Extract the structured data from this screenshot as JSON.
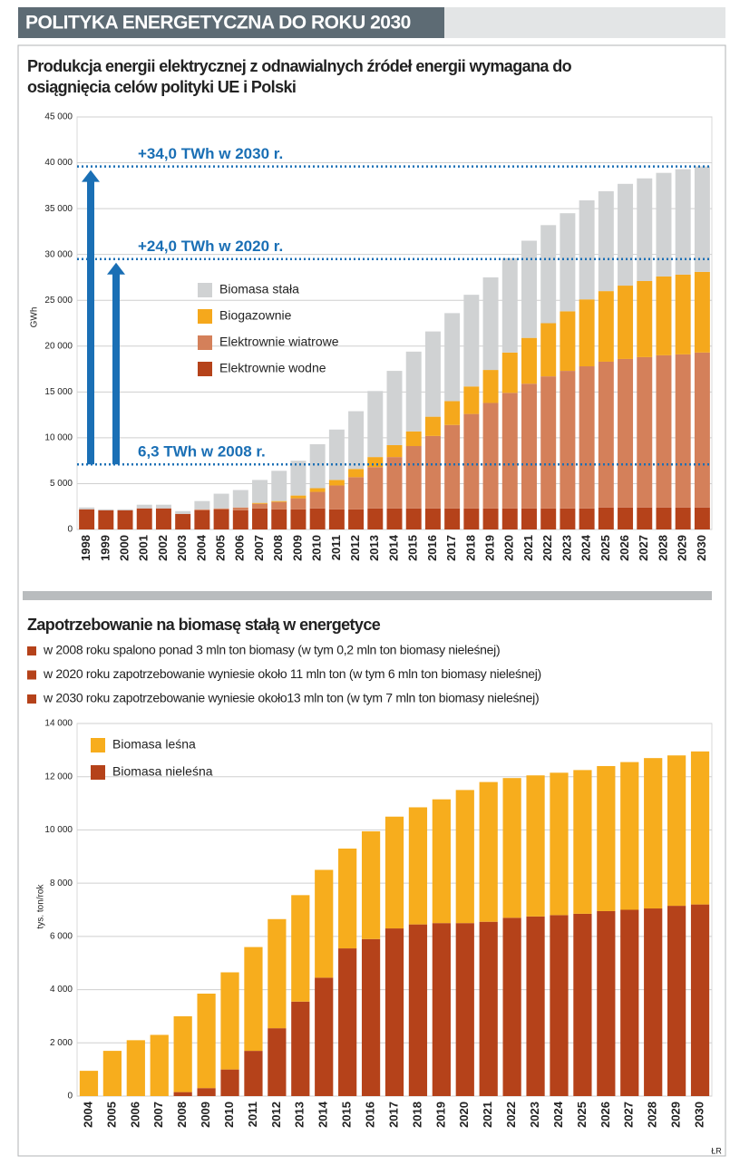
{
  "header": {
    "title": "POLITYKA ENERGETYCZNA DO ROKU 2030"
  },
  "credit": "ŁR",
  "chart_data": [
    {
      "type": "stacked-bar",
      "title": "Produkcja energii elektrycznej z odnawialnych źródeł energii wymagana do osiągnięcia celów polityki UE i Polski",
      "y_label": "GWh",
      "categories": [
        "1998",
        "1999",
        "2000",
        "2001",
        "2002",
        "2003",
        "2004",
        "2005",
        "2006",
        "2007",
        "2008",
        "2009",
        "2010",
        "2011",
        "2012",
        "2013",
        "2014",
        "2015",
        "2016",
        "2017",
        "2018",
        "2019",
        "2020",
        "2021",
        "2022",
        "2023",
        "2024",
        "2025",
        "2026",
        "2027",
        "2028",
        "2029",
        "2030"
      ],
      "series": [
        {
          "name": "Elektrownie wodne",
          "color": "#b5421a",
          "values": [
            2200,
            2100,
            2100,
            2300,
            2300,
            1700,
            2100,
            2200,
            2100,
            2300,
            2200,
            2200,
            2300,
            2200,
            2200,
            2300,
            2300,
            2300,
            2300,
            2300,
            2300,
            2300,
            2300,
            2300,
            2300,
            2300,
            2300,
            2400,
            2400,
            2400,
            2400,
            2400,
            2400
          ]
        },
        {
          "name": "Elektrownie wiatrowe",
          "color": "#d4805a",
          "values": [
            0,
            0,
            0,
            0,
            0,
            0,
            100,
            100,
            300,
            500,
            800,
            1200,
            1800,
            2600,
            3500,
            4500,
            5600,
            6800,
            7900,
            9100,
            10300,
            11500,
            12600,
            13600,
            14400,
            15000,
            15500,
            15900,
            16200,
            16400,
            16600,
            16700,
            16900
          ]
        },
        {
          "name": "Biogazownie",
          "color": "#f5a81c",
          "values": [
            0,
            0,
            0,
            0,
            0,
            0,
            0,
            0,
            0,
            100,
            100,
            300,
            400,
            600,
            900,
            1100,
            1300,
            1600,
            2100,
            2600,
            3000,
            3600,
            4400,
            5000,
            5800,
            6500,
            7300,
            7700,
            8000,
            8300,
            8600,
            8700,
            8800
          ]
        },
        {
          "name": "Biomasa stała",
          "color": "#d0d2d3",
          "values": [
            200,
            100,
            100,
            400,
            400,
            300,
            900,
            1600,
            1900,
            2500,
            3300,
            3800,
            4800,
            5500,
            6300,
            7200,
            8100,
            8700,
            9300,
            9600,
            10000,
            10100,
            10300,
            10600,
            10700,
            10700,
            10800,
            10900,
            11100,
            11200,
            11300,
            11500,
            11500
          ]
        }
      ],
      "ylim": [
        0,
        45000
      ],
      "yticks": [
        0,
        {
          "value": 5000,
          "label": "5 000"
        },
        {
          "value": 10000,
          "label": "10 000"
        },
        {
          "value": 15000,
          "label": "15 000"
        },
        {
          "value": 20000,
          "label": "20 000"
        },
        {
          "value": 25000,
          "label": "25 000"
        },
        {
          "value": 30000,
          "label": "30 000"
        },
        {
          "value": 35000,
          "label": "35 000"
        },
        {
          "value": 40000,
          "label": "40 000"
        },
        {
          "value": 45000,
          "label": "45 000"
        }
      ],
      "grid": true,
      "annotations": [
        {
          "text": "+34,0 TWh w 2030 r.",
          "value": 39600
        },
        {
          "text": "+24,0 TWh w 2020 r.",
          "value": 29500
        },
        {
          "text": "6,3 TWh w 2008 r.",
          "value": 7100
        }
      ]
    },
    {
      "type": "stacked-bar",
      "title": "Zapotrzebowanie na biomasę stałą w energetyce",
      "notes": [
        "w 2008 roku spalono ponad 3 mln ton biomasy (w tym 0,2 mln ton biomasy nieleśnej)",
        "w 2020 roku zapotrzebowanie wyniesie około 11 mln ton (w tym 6 mln ton biomasy nieleśnej)",
        "w 2030 roku zapotrzebowanie wyniesie około13 mln ton (w tym 7 mln ton biomasy nieleśnej)"
      ],
      "y_label": "tys. ton/rok",
      "categories": [
        "2004",
        "2005",
        "2006",
        "2007",
        "2008",
        "2009",
        "2010",
        "2011",
        "2012",
        "2013",
        "2014",
        "2015",
        "2016",
        "2017",
        "2018",
        "2019",
        "2020",
        "2021",
        "2022",
        "2023",
        "2024",
        "2025",
        "2026",
        "2027",
        "2028",
        "2029",
        "2030"
      ],
      "series": [
        {
          "name": "Biomasa nieleśna",
          "color": "#b5421a",
          "values": [
            0,
            0,
            0,
            0,
            150,
            300,
            1000,
            1700,
            2550,
            3550,
            4450,
            5550,
            5900,
            6300,
            6450,
            6500,
            6500,
            6550,
            6700,
            6750,
            6800,
            6850,
            6950,
            7000,
            7050,
            7150,
            7200
          ]
        },
        {
          "name": "Biomasa leśna",
          "color": "#f7ad1d",
          "values": [
            950,
            1700,
            2100,
            2300,
            2850,
            3550,
            3650,
            3900,
            4100,
            4000,
            4050,
            3750,
            4050,
            4200,
            4400,
            4650,
            5000,
            5250,
            5250,
            5300,
            5350,
            5400,
            5450,
            5550,
            5650,
            5650,
            5750
          ]
        }
      ],
      "ylim": [
        0,
        14000
      ],
      "yticks": [
        0,
        {
          "value": 2000,
          "label": "2 000"
        },
        {
          "value": 4000,
          "label": "4 000"
        },
        {
          "value": 6000,
          "label": "6 000"
        },
        {
          "value": 8000,
          "label": "8 000"
        },
        {
          "value": 10000,
          "label": "10 000"
        },
        {
          "value": 12000,
          "label": "12 000"
        },
        {
          "value": 14000,
          "label": "14 000"
        }
      ],
      "grid": true
    }
  ]
}
